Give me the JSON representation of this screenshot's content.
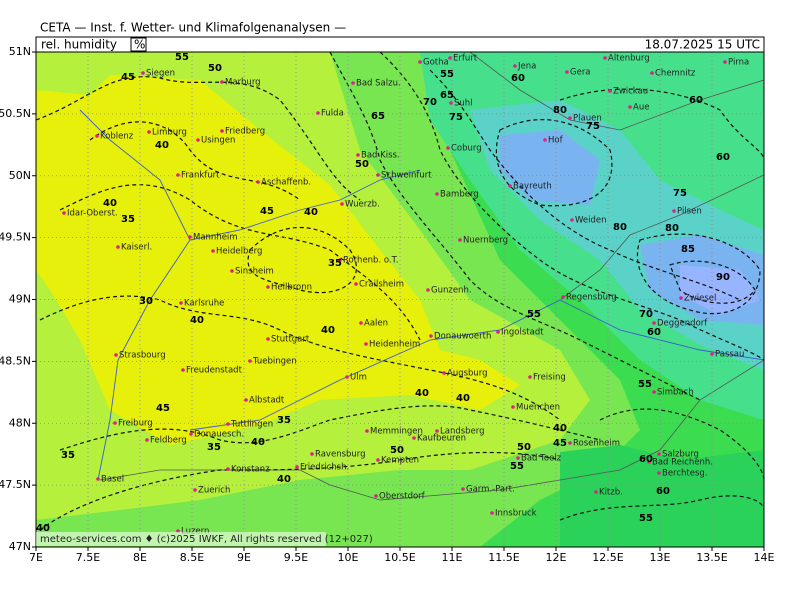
{
  "header": {
    "title": "CETA — Inst. f. Wetter- und Klimafolgenanalysen —",
    "product": "rel. humidity",
    "unit": "%",
    "datetime": "18.07.2025 15 UTC",
    "footer": "meteo-services.com ♦ (c)2025 IWKF, All rights reserved (12+027)"
  },
  "axes": {
    "lon_ticks": [
      {
        "value": 7,
        "label": "7E"
      },
      {
        "value": 7.5,
        "label": "7.5E"
      },
      {
        "value": 8,
        "label": "8E"
      },
      {
        "value": 8.5,
        "label": "8.5E"
      },
      {
        "value": 9,
        "label": "9E"
      },
      {
        "value": 9.5,
        "label": "9.5E"
      },
      {
        "value": 10,
        "label": "10E"
      },
      {
        "value": 10.5,
        "label": "10.5E"
      },
      {
        "value": 11,
        "label": "11E"
      },
      {
        "value": 11.5,
        "label": "11.5E"
      },
      {
        "value": 12,
        "label": "12E"
      },
      {
        "value": 12.5,
        "label": "12.5E"
      },
      {
        "value": 13,
        "label": "13E"
      },
      {
        "value": 13.5,
        "label": "13.5E"
      },
      {
        "value": 14,
        "label": "14E"
      }
    ],
    "lat_ticks": [
      {
        "value": 51,
        "label": "51N"
      },
      {
        "value": 50.5,
        "label": "50.5N"
      },
      {
        "value": 50,
        "label": "50N"
      },
      {
        "value": 49.5,
        "label": "49.5N"
      },
      {
        "value": 49,
        "label": "49N"
      },
      {
        "value": 48.5,
        "label": "48.5N"
      },
      {
        "value": 48,
        "label": "48N"
      },
      {
        "value": 47.5,
        "label": "47.5N"
      },
      {
        "value": 47,
        "label": "47N"
      }
    ]
  },
  "cities": [
    "Siegen",
    "Marburg",
    "Koblenz",
    "Limburg",
    "Usingen",
    "Friedberg",
    "Fulda",
    "Bad Salzu.",
    "Gotha",
    "Erfurt",
    "Jena",
    "Gera",
    "Altenburg",
    "Chemnitz",
    "Zwickau",
    "Aue",
    "Plauen",
    "Hof",
    "Suhl",
    "Coburg",
    "Bad Kiss.",
    "Schweinfurt",
    "Frankfurt",
    "Aschaffenb.",
    "Bamberg",
    "Bayreuth",
    "Weiden",
    "Wuerzb.",
    "Idar-Oberst.",
    "Mannheim",
    "Heidelberg",
    "Kaiserl.",
    "Sinsheim",
    "Heilbronn",
    "Rothenb. o.T.",
    "Crailsheim",
    "Nuernberg",
    "Gunzenh.",
    "Regensburg",
    "Pilsen",
    "Zwiesel",
    "Deggendorf",
    "Passau",
    "Karlsruhe",
    "Stuttgart",
    "Aalen",
    "Heidenheim",
    "Donauwoerth",
    "Ingolstadt",
    "Strasbourg",
    "Tuebingen",
    "Freudenstadt",
    "Ulm",
    "Augsburg",
    "Freising",
    "Simbach",
    "Albstadt",
    "Muenchen",
    "Freiburg",
    "Donauesch.",
    "Tuttlingen",
    "Memmingen",
    "Landsberg",
    "Kaufbeuren",
    "Rosenheim",
    "Salzburg",
    "Bad Reichenh.",
    "Berchtesg.",
    "Feldberg",
    "Konstanz",
    "Friedrichsh.",
    "Ravensburg",
    "Kempten",
    "Bad Toelz",
    "Basel",
    "Zuerich",
    "Oberstdorf",
    "Garm.-Part.",
    "Kitzb.",
    "Innsbruck",
    "Luzern",
    "Pirna"
  ],
  "contour_labels": [
    45,
    55,
    50,
    40,
    40,
    35,
    30,
    40,
    40,
    35,
    45,
    40,
    50,
    65,
    70,
    75,
    65,
    55,
    60,
    80,
    75,
    80,
    75,
    80,
    85,
    90,
    60,
    60,
    70,
    55,
    60,
    55,
    40,
    40,
    40,
    45,
    50,
    55,
    50,
    60,
    60,
    55,
    45,
    35,
    35,
    40,
    35,
    40,
    40
  ]
}
